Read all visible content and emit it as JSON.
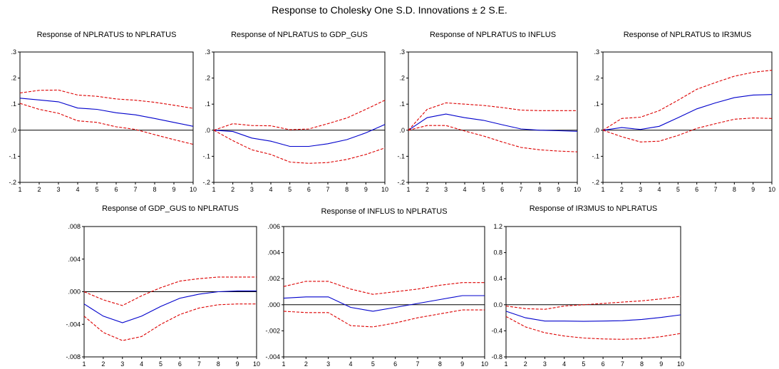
{
  "title": "Response to Cholesky One S.D. Innovations ± 2 S.E.",
  "colors": {
    "response": "#0000cc",
    "band": "#dd0000",
    "zero": "#000000",
    "frame": "#000000"
  },
  "chart_data": [
    {
      "type": "line",
      "title": "Response of NPLRATUS to NPLRATUS",
      "x": [
        1,
        2,
        3,
        4,
        5,
        6,
        7,
        8,
        9,
        10
      ],
      "ylim": [
        -0.2,
        0.3
      ],
      "yticks": [
        ".3",
        ".2",
        ".1",
        ".0",
        "-.1",
        "-.2"
      ],
      "ytick_values": [
        0.3,
        0.2,
        0.1,
        0.0,
        -0.1,
        -0.2
      ],
      "series": [
        {
          "values": [
            0.123,
            0.116,
            0.109,
            0.085,
            0.08,
            0.067,
            0.059,
            0.045,
            0.03,
            0.015
          ]
        },
        {
          "values": [
            0.143,
            0.153,
            0.154,
            0.135,
            0.13,
            0.12,
            0.115,
            0.107,
            0.096,
            0.084
          ]
        },
        {
          "values": [
            0.103,
            0.08,
            0.065,
            0.036,
            0.03,
            0.013,
            0.003,
            -0.017,
            -0.036,
            -0.054
          ]
        }
      ]
    },
    {
      "type": "line",
      "title": "Response of NPLRATUS to GDP_GUS",
      "x": [
        1,
        2,
        3,
        4,
        5,
        6,
        7,
        8,
        9,
        10
      ],
      "ylim": [
        -0.2,
        0.3
      ],
      "yticks": [
        ".3",
        ".2",
        ".1",
        ".0",
        "-.1",
        "-.2"
      ],
      "ytick_values": [
        0.3,
        0.2,
        0.1,
        0.0,
        -0.1,
        -0.2
      ],
      "series": [
        {
          "values": [
            0.0,
            -0.005,
            -0.03,
            -0.042,
            -0.062,
            -0.062,
            -0.052,
            -0.036,
            -0.01,
            0.022
          ]
        },
        {
          "values": [
            0.0,
            0.025,
            0.018,
            0.017,
            0.002,
            0.005,
            0.025,
            0.047,
            0.08,
            0.115
          ]
        },
        {
          "values": [
            0.0,
            -0.04,
            -0.075,
            -0.093,
            -0.122,
            -0.127,
            -0.124,
            -0.112,
            -0.093,
            -0.068
          ]
        }
      ]
    },
    {
      "type": "line",
      "title": "Response of NPLRATUS to INFLUS",
      "x": [
        1,
        2,
        3,
        4,
        5,
        6,
        7,
        8,
        9,
        10
      ],
      "ylim": [
        -0.2,
        0.3
      ],
      "yticks": [
        ".3",
        ".2",
        ".1",
        ".0",
        "-.1",
        "-.2"
      ],
      "ytick_values": [
        0.3,
        0.2,
        0.1,
        0.0,
        -0.1,
        -0.2
      ],
      "series": [
        {
          "values": [
            0.0,
            0.048,
            0.062,
            0.048,
            0.038,
            0.021,
            0.005,
            0.0,
            -0.002,
            -0.004
          ]
        },
        {
          "values": [
            0.0,
            0.08,
            0.105,
            0.1,
            0.095,
            0.087,
            0.077,
            0.075,
            0.075,
            0.075
          ]
        },
        {
          "values": [
            0.0,
            0.018,
            0.018,
            -0.003,
            -0.022,
            -0.045,
            -0.066,
            -0.075,
            -0.08,
            -0.083
          ]
        }
      ]
    },
    {
      "type": "line",
      "title": "Response of NPLRATUS to IR3MUS",
      "x": [
        1,
        2,
        3,
        4,
        5,
        6,
        7,
        8,
        9,
        10
      ],
      "ylim": [
        -0.2,
        0.3
      ],
      "yticks": [
        ".3",
        ".2",
        ".1",
        ".0",
        "-.1",
        "-.2"
      ],
      "ytick_values": [
        0.3,
        0.2,
        0.1,
        0.0,
        -0.1,
        -0.2
      ],
      "series": [
        {
          "values": [
            0.0,
            0.01,
            0.003,
            0.015,
            0.048,
            0.082,
            0.105,
            0.125,
            0.135,
            0.137
          ]
        },
        {
          "values": [
            0.0,
            0.045,
            0.05,
            0.075,
            0.115,
            0.157,
            0.183,
            0.207,
            0.222,
            0.23
          ]
        },
        {
          "values": [
            0.0,
            -0.025,
            -0.045,
            -0.042,
            -0.02,
            0.007,
            0.025,
            0.042,
            0.047,
            0.045
          ]
        }
      ]
    },
    {
      "type": "line",
      "title": "Response of GDP_GUS to NPLRATUS",
      "x": [
        1,
        2,
        3,
        4,
        5,
        6,
        7,
        8,
        9,
        10
      ],
      "ylim": [
        -0.008,
        0.008
      ],
      "yticks": [
        ".008",
        ".004",
        ".000",
        "-.004",
        "-.008"
      ],
      "ytick_values": [
        0.008,
        0.004,
        0.0,
        -0.004,
        -0.008
      ],
      "series": [
        {
          "values": [
            -0.0015,
            -0.003,
            -0.0038,
            -0.003,
            -0.0018,
            -0.0008,
            -0.0003,
            0.0,
            0.0001,
            0.0001
          ]
        },
        {
          "values": [
            0.0,
            -0.001,
            -0.0017,
            -0.0005,
            0.0005,
            0.0013,
            0.0016,
            0.0018,
            0.0018,
            0.0018
          ]
        },
        {
          "values": [
            -0.003,
            -0.005,
            -0.006,
            -0.0055,
            -0.004,
            -0.0028,
            -0.002,
            -0.0016,
            -0.0015,
            -0.0015
          ]
        }
      ]
    },
    {
      "type": "line",
      "title": "Response of INFLUS to NPLRATUS",
      "x": [
        1,
        2,
        3,
        4,
        5,
        6,
        7,
        8,
        9,
        10
      ],
      "ylim": [
        -0.004,
        0.006
      ],
      "yticks": [
        ".006",
        ".004",
        ".002",
        ".000",
        "-.002",
        "-.004"
      ],
      "ytick_values": [
        0.006,
        0.004,
        0.002,
        0.0,
        -0.002,
        -0.004
      ],
      "series": [
        {
          "values": [
            0.0005,
            0.0006,
            0.0006,
            -0.0002,
            -0.0005,
            -0.0002,
            0.0001,
            0.0004,
            0.0007,
            0.0007
          ]
        },
        {
          "values": [
            0.0014,
            0.0018,
            0.0018,
            0.0012,
            0.0008,
            0.001,
            0.0012,
            0.0015,
            0.0017,
            0.0017
          ]
        },
        {
          "values": [
            -0.0005,
            -0.0006,
            -0.0006,
            -0.0016,
            -0.0017,
            -0.0014,
            -0.001,
            -0.0007,
            -0.0004,
            -0.0004
          ]
        }
      ]
    },
    {
      "type": "line",
      "title": "Response of IR3MUS to NPLRATUS",
      "x": [
        1,
        2,
        3,
        4,
        5,
        6,
        7,
        8,
        9,
        10
      ],
      "ylim": [
        -0.8,
        1.2
      ],
      "yticks": [
        "1.2",
        "0.8",
        "0.4",
        "0.0",
        "-0.4",
        "-0.8"
      ],
      "ytick_values": [
        1.2,
        0.8,
        0.4,
        0.0,
        -0.4,
        -0.8
      ],
      "series": [
        {
          "values": [
            -0.1,
            -0.2,
            -0.25,
            -0.25,
            -0.255,
            -0.25,
            -0.245,
            -0.225,
            -0.195,
            -0.155
          ]
        },
        {
          "values": [
            -0.02,
            -0.06,
            -0.07,
            -0.02,
            0.0,
            0.02,
            0.04,
            0.06,
            0.09,
            0.13
          ]
        },
        {
          "values": [
            -0.18,
            -0.34,
            -0.43,
            -0.48,
            -0.51,
            -0.525,
            -0.53,
            -0.52,
            -0.49,
            -0.44
          ]
        }
      ]
    }
  ]
}
